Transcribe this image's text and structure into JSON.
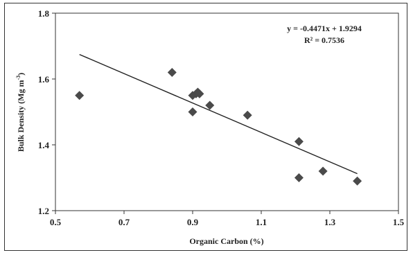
{
  "chart_data": {
    "type": "scatter",
    "xlabel": "Organic Carbon (%)",
    "ylabel_main": "Bulk Density (Mg m",
    "ylabel_sup": "-3",
    "ylabel_tail": ")",
    "xlim": [
      0.5,
      1.5
    ],
    "ylim": [
      1.2,
      1.8
    ],
    "xticks": [
      "0.5",
      "0.7",
      "0.9",
      "1.1",
      "1.3",
      "1.5"
    ],
    "yticks": [
      "1.2",
      "1.4",
      "1.6",
      "1.8"
    ],
    "grid": false,
    "legend": "none",
    "marker_color": "#4a4a4a",
    "points": [
      {
        "x": 0.57,
        "y": 1.55
      },
      {
        "x": 0.84,
        "y": 1.62
      },
      {
        "x": 0.9,
        "y": 1.5
      },
      {
        "x": 0.9,
        "y": 1.55
      },
      {
        "x": 0.91,
        "y": 1.555
      },
      {
        "x": 0.915,
        "y": 1.56
      },
      {
        "x": 0.92,
        "y": 1.555
      },
      {
        "x": 0.95,
        "y": 1.52
      },
      {
        "x": 1.06,
        "y": 1.49
      },
      {
        "x": 1.21,
        "y": 1.41
      },
      {
        "x": 1.21,
        "y": 1.3
      },
      {
        "x": 1.28,
        "y": 1.32
      },
      {
        "x": 1.38,
        "y": 1.29
      }
    ],
    "trendline": {
      "slope": -0.4471,
      "intercept": 1.9294,
      "x_range": [
        0.57,
        1.38
      ],
      "equation_label": "y = -0.4471x + 1.9294",
      "r2_label": "R² = 0.7536"
    }
  }
}
